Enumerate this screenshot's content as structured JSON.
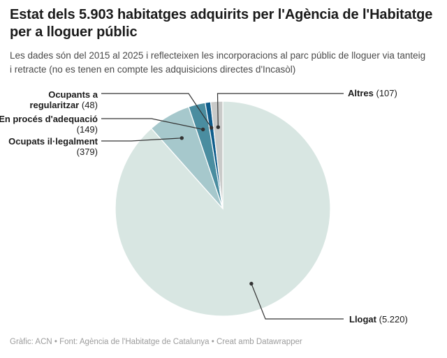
{
  "header": {
    "title": "Estat dels 5.903 habitatges adquirits per l'Agència de l'Habitatge per a lloguer públic",
    "subtitle": "Les dades són del 2015 al 2025 i reflecteixen les incorporacions al parc públic de lloguer via tanteig i retracte (no es tenen en compte les adquisicions directes d'Incasòl)"
  },
  "chart_data": {
    "type": "pie",
    "title": "Estat dels 5.903 habitatges adquirits per l'Agència de l'Habitatge per a lloguer públic",
    "total": 5903,
    "total_display": "5.903",
    "legend_position": "callout-labels",
    "slices": [
      {
        "name": "Llogat",
        "value": 5220,
        "value_label": "(5.220)",
        "color": "#d8e6e2"
      },
      {
        "name": "Ocupats il·legalment",
        "value": 379,
        "value_label": "(379)",
        "color": "#a6c8cc"
      },
      {
        "name": "En procés d'adequació",
        "value": 149,
        "value_label": "(149)",
        "color": "#4a8da0"
      },
      {
        "name": "Ocupants a regularitzar",
        "value": 48,
        "value_label": "(48)",
        "color": "#0e5c8b"
      },
      {
        "name": "Altres",
        "value": 107,
        "value_label": "(107)",
        "color": "#c9cac9"
      }
    ],
    "line_color": "#333333"
  },
  "footer": {
    "text": "Gràfic: ACN • Font: Agència de l'Habitatge de Catalunya • Creat amb Datawrapper"
  }
}
